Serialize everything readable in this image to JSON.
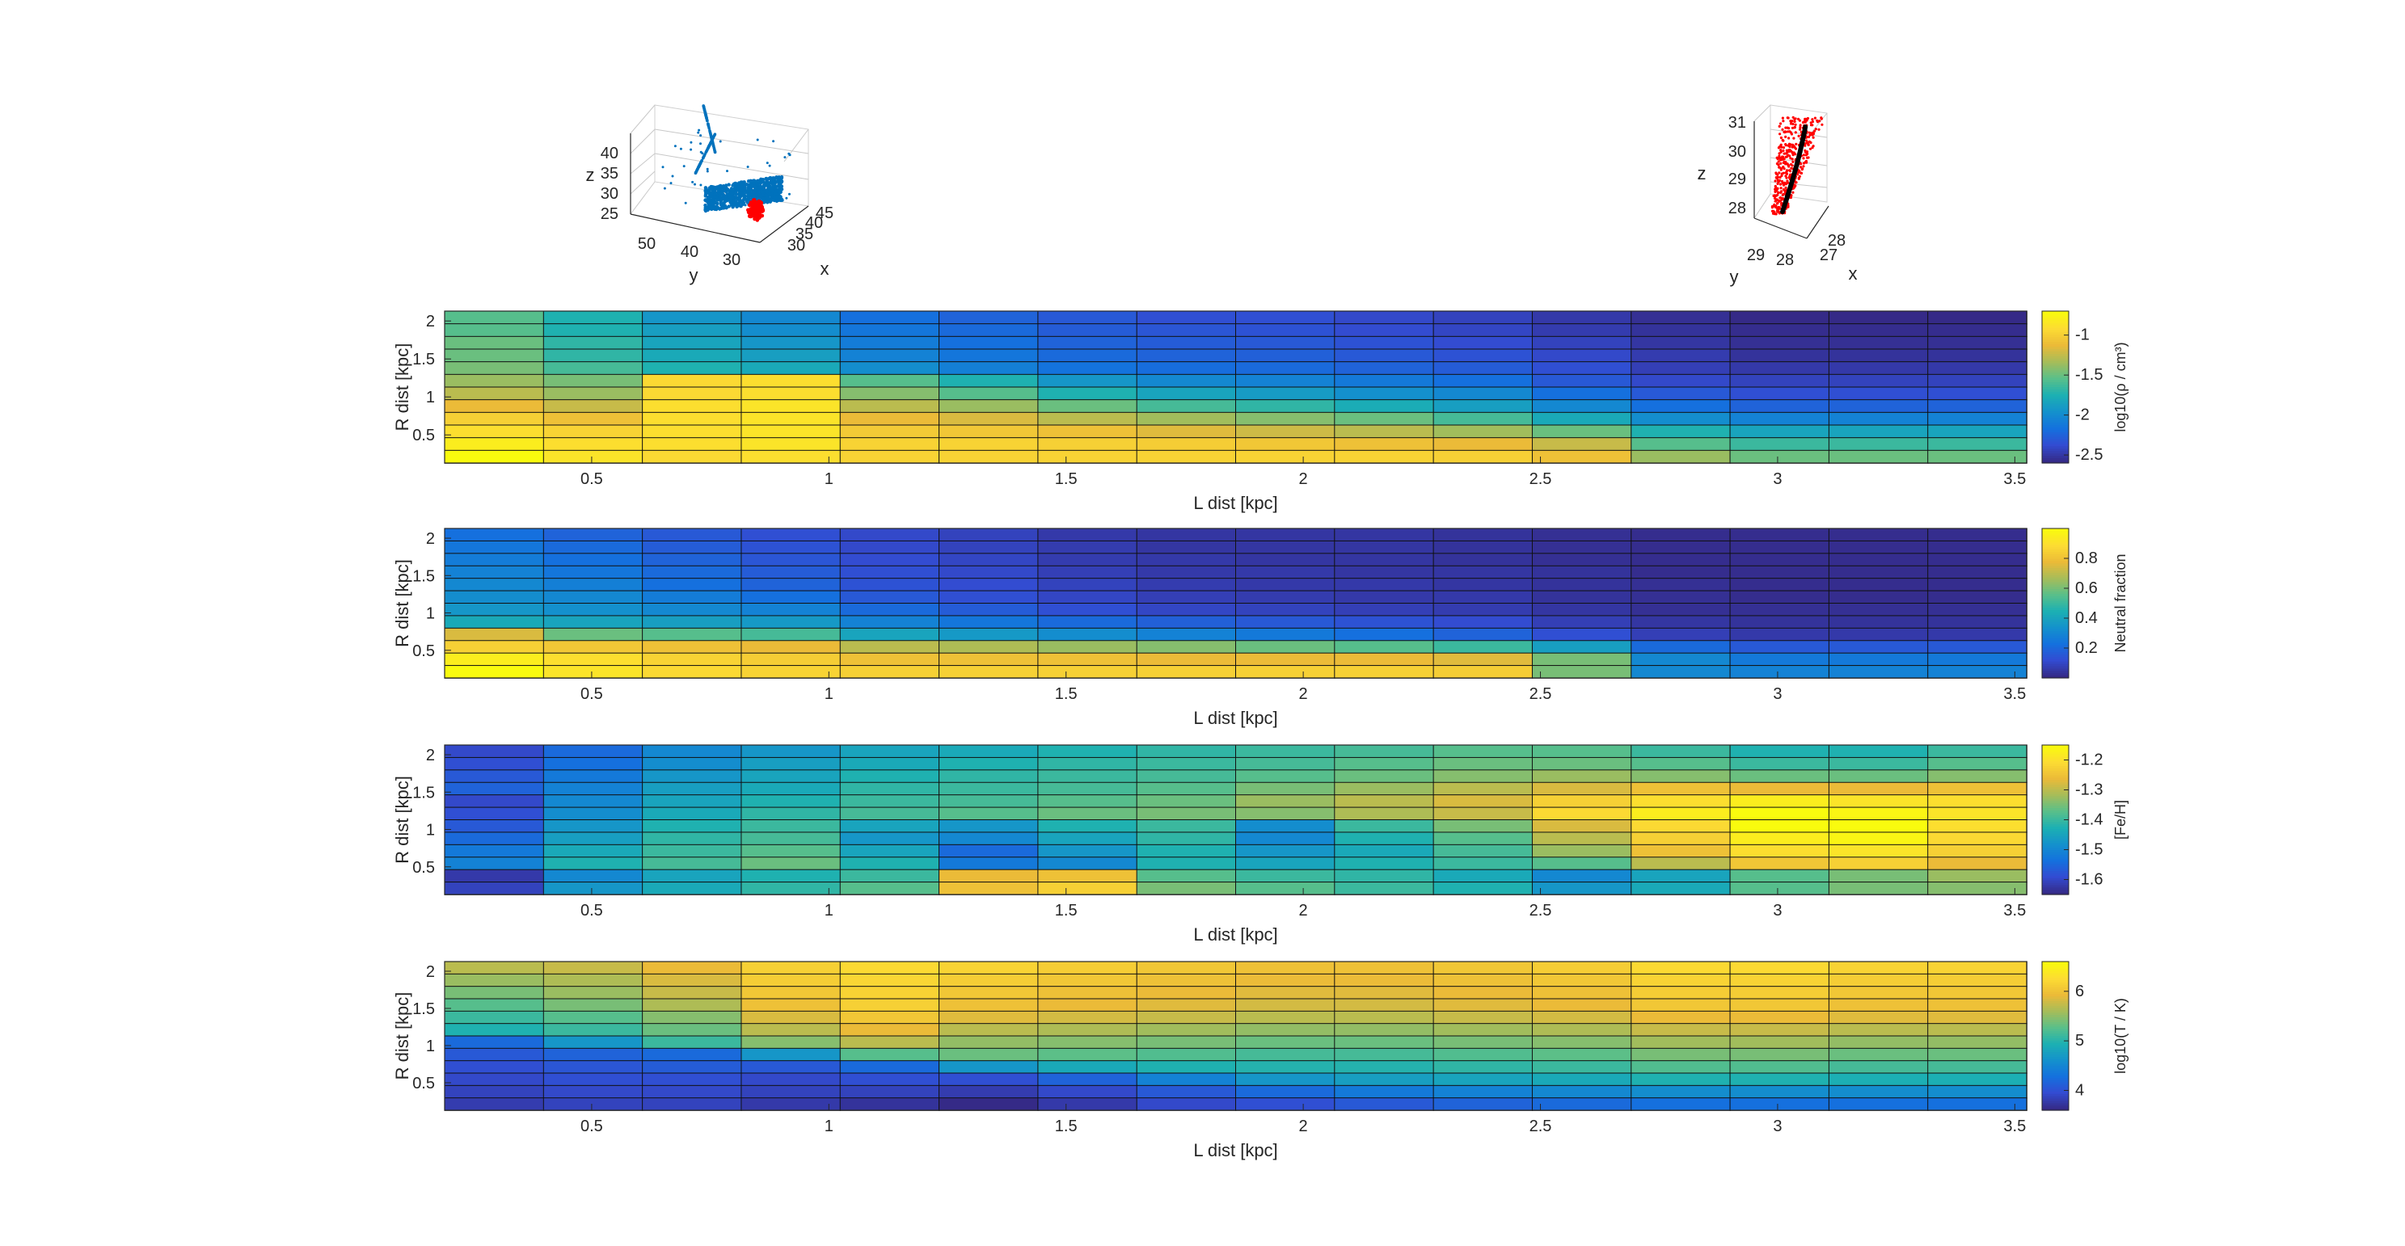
{
  "chart_data": [
    {
      "type": "scatter",
      "title": "",
      "xlabel": "x",
      "ylabel": "y",
      "zlabel": "z",
      "x_ticks": [
        "30",
        "35",
        "40",
        "45"
      ],
      "y_ticks": [
        "50",
        "40",
        "30"
      ],
      "z_ticks": [
        "25",
        "30",
        "35",
        "40"
      ],
      "series": [
        {
          "color": "#0072bd",
          "x": [
            30,
            33,
            36,
            38,
            40,
            42,
            35,
            31
          ],
          "y": [
            42,
            38,
            45,
            52,
            30,
            35,
            28,
            48
          ],
          "z": [
            28,
            30,
            33,
            38,
            26,
            29,
            27,
            41
          ]
        },
        {
          "color": "#ff0000",
          "x": [
            30,
            31
          ],
          "y": [
            29,
            30
          ],
          "z": [
            24,
            25
          ]
        }
      ]
    },
    {
      "type": "scatter",
      "title": "",
      "xlabel": "x",
      "ylabel": "y",
      "zlabel": "z",
      "x_ticks": [
        "27",
        "28"
      ],
      "y_ticks": [
        "29",
        "28"
      ],
      "z_ticks": [
        "28",
        "29",
        "30",
        "31"
      ],
      "series": [
        {
          "color": "#ff0000",
          "x": [
            27.5,
            28.1
          ],
          "y": [
            28.2,
            29
          ],
          "z": [
            27.5,
            31
          ]
        },
        {
          "color": "#000000",
          "x": [
            27.8,
            28
          ],
          "y": [
            28.5,
            28.8
          ],
          "z": [
            27.8,
            31
          ]
        }
      ]
    },
    {
      "type": "heatmap",
      "xlabel": "L dist [kpc]",
      "ylabel": "R dist [kpc]",
      "x_ticks": [
        "0.5",
        "1",
        "1.5",
        "2",
        "2.5",
        "3",
        "3.5"
      ],
      "y_ticks": [
        "0.5",
        "1",
        "1.5",
        "2"
      ],
      "colorbar": {
        "label": "log10(ρ / cm³)",
        "ticks": [
          "-1",
          "-1.5",
          "-2",
          "-2.5"
        ],
        "range": [
          -2.6,
          -0.7
        ]
      },
      "rows": 12,
      "columns": 16,
      "row_order": "top-to-bottom",
      "values": [
        [
          0.55,
          0.45,
          0.35,
          0.3,
          0.22,
          0.18,
          0.15,
          0.12,
          0.12,
          0.1,
          0.08,
          0.05,
          0.02,
          0.0,
          0.0,
          0.0
        ],
        [
          0.55,
          0.45,
          0.38,
          0.32,
          0.24,
          0.2,
          0.16,
          0.14,
          0.13,
          0.11,
          0.09,
          0.06,
          0.03,
          0.01,
          0.01,
          0.01
        ],
        [
          0.58,
          0.48,
          0.4,
          0.35,
          0.26,
          0.22,
          0.18,
          0.16,
          0.15,
          0.13,
          0.11,
          0.08,
          0.04,
          0.02,
          0.02,
          0.02
        ],
        [
          0.58,
          0.48,
          0.42,
          0.38,
          0.28,
          0.24,
          0.2,
          0.18,
          0.17,
          0.15,
          0.13,
          0.1,
          0.06,
          0.03,
          0.03,
          0.03
        ],
        [
          0.6,
          0.52,
          0.45,
          0.42,
          0.32,
          0.27,
          0.23,
          0.21,
          0.2,
          0.18,
          0.16,
          0.12,
          0.07,
          0.05,
          0.05,
          0.05
        ],
        [
          0.65,
          0.6,
          0.88,
          0.9,
          0.55,
          0.45,
          0.35,
          0.3,
          0.28,
          0.25,
          0.22,
          0.15,
          0.1,
          0.08,
          0.08,
          0.08
        ],
        [
          0.7,
          0.65,
          0.88,
          0.9,
          0.62,
          0.55,
          0.45,
          0.4,
          0.37,
          0.33,
          0.3,
          0.22,
          0.15,
          0.12,
          0.12,
          0.12
        ],
        [
          0.78,
          0.72,
          0.9,
          0.92,
          0.7,
          0.65,
          0.58,
          0.52,
          0.48,
          0.43,
          0.38,
          0.3,
          0.22,
          0.18,
          0.18,
          0.18
        ],
        [
          0.85,
          0.8,
          0.9,
          0.92,
          0.78,
          0.75,
          0.7,
          0.66,
          0.62,
          0.58,
          0.52,
          0.42,
          0.32,
          0.28,
          0.28,
          0.28
        ],
        [
          0.9,
          0.86,
          0.9,
          0.92,
          0.83,
          0.82,
          0.8,
          0.76,
          0.73,
          0.7,
          0.66,
          0.58,
          0.45,
          0.4,
          0.4,
          0.4
        ],
        [
          0.95,
          0.9,
          0.9,
          0.92,
          0.86,
          0.86,
          0.85,
          0.84,
          0.82,
          0.8,
          0.78,
          0.72,
          0.55,
          0.5,
          0.5,
          0.5
        ],
        [
          1.0,
          0.92,
          0.88,
          0.9,
          0.86,
          0.86,
          0.86,
          0.86,
          0.86,
          0.86,
          0.85,
          0.8,
          0.65,
          0.58,
          0.58,
          0.58
        ]
      ]
    },
    {
      "type": "heatmap",
      "xlabel": "L dist [kpc]",
      "ylabel": "R dist [kpc]",
      "x_ticks": [
        "0.5",
        "1",
        "1.5",
        "2",
        "2.5",
        "3",
        "3.5"
      ],
      "y_ticks": [
        "0.5",
        "1",
        "1.5",
        "2"
      ],
      "colorbar": {
        "label": "Neutral fraction",
        "ticks": [
          "0.8",
          "0.6",
          "0.4",
          "0.2"
        ],
        "range": [
          0,
          1
        ]
      },
      "rows": 12,
      "columns": 16,
      "row_order": "top-to-bottom",
      "values": [
        [
          0.22,
          0.18,
          0.15,
          0.12,
          0.1,
          0.08,
          0.05,
          0.04,
          0.04,
          0.04,
          0.03,
          0.02,
          0.01,
          0.01,
          0.01,
          0.01
        ],
        [
          0.24,
          0.2,
          0.16,
          0.13,
          0.1,
          0.08,
          0.06,
          0.04,
          0.04,
          0.04,
          0.03,
          0.02,
          0.01,
          0.01,
          0.01,
          0.01
        ],
        [
          0.26,
          0.22,
          0.18,
          0.14,
          0.11,
          0.09,
          0.06,
          0.05,
          0.04,
          0.04,
          0.03,
          0.02,
          0.01,
          0.01,
          0.01,
          0.01
        ],
        [
          0.28,
          0.24,
          0.2,
          0.16,
          0.12,
          0.1,
          0.07,
          0.05,
          0.05,
          0.04,
          0.04,
          0.03,
          0.01,
          0.01,
          0.01,
          0.01
        ],
        [
          0.3,
          0.27,
          0.22,
          0.18,
          0.13,
          0.11,
          0.08,
          0.06,
          0.05,
          0.05,
          0.04,
          0.03,
          0.02,
          0.01,
          0.01,
          0.01
        ],
        [
          0.32,
          0.3,
          0.26,
          0.22,
          0.15,
          0.12,
          0.09,
          0.07,
          0.06,
          0.05,
          0.05,
          0.03,
          0.02,
          0.01,
          0.01,
          0.01
        ],
        [
          0.35,
          0.33,
          0.3,
          0.28,
          0.2,
          0.16,
          0.12,
          0.09,
          0.08,
          0.07,
          0.06,
          0.04,
          0.02,
          0.02,
          0.02,
          0.02
        ],
        [
          0.42,
          0.4,
          0.38,
          0.36,
          0.28,
          0.24,
          0.2,
          0.17,
          0.15,
          0.13,
          0.11,
          0.07,
          0.04,
          0.03,
          0.03,
          0.03
        ],
        [
          0.75,
          0.58,
          0.55,
          0.52,
          0.4,
          0.36,
          0.32,
          0.28,
          0.25,
          0.22,
          0.18,
          0.12,
          0.07,
          0.05,
          0.05,
          0.05
        ],
        [
          0.85,
          0.82,
          0.8,
          0.78,
          0.7,
          0.68,
          0.65,
          0.62,
          0.58,
          0.55,
          0.5,
          0.38,
          0.2,
          0.15,
          0.15,
          0.15
        ],
        [
          0.95,
          0.9,
          0.86,
          0.84,
          0.8,
          0.8,
          0.8,
          0.78,
          0.78,
          0.78,
          0.76,
          0.6,
          0.3,
          0.25,
          0.25,
          0.25
        ],
        [
          1.0,
          0.92,
          0.88,
          0.86,
          0.85,
          0.85,
          0.85,
          0.85,
          0.85,
          0.85,
          0.84,
          0.6,
          0.3,
          0.28,
          0.28,
          0.28
        ]
      ]
    },
    {
      "type": "heatmap",
      "xlabel": "L dist [kpc]",
      "ylabel": "R dist [kpc]",
      "x_ticks": [
        "0.5",
        "1",
        "1.5",
        "2",
        "2.5",
        "3",
        "3.5"
      ],
      "y_ticks": [
        "0.5",
        "1",
        "1.5",
        "2"
      ],
      "colorbar": {
        "label": "[Fe/H]",
        "ticks": [
          "-1.2",
          "-1.3",
          "-1.4",
          "-1.5",
          "-1.6"
        ],
        "range": [
          -1.65,
          -1.15
        ]
      },
      "rows": 12,
      "columns": 16,
      "row_order": "top-to-bottom",
      "values": [
        [
          0.1,
          0.2,
          0.3,
          0.35,
          0.4,
          0.42,
          0.45,
          0.48,
          0.5,
          0.52,
          0.55,
          0.55,
          0.5,
          0.45,
          0.45,
          0.5
        ],
        [
          0.12,
          0.22,
          0.32,
          0.38,
          0.42,
          0.45,
          0.48,
          0.5,
          0.52,
          0.55,
          0.58,
          0.58,
          0.55,
          0.5,
          0.5,
          0.55
        ],
        [
          0.15,
          0.25,
          0.35,
          0.4,
          0.45,
          0.48,
          0.5,
          0.52,
          0.55,
          0.58,
          0.62,
          0.65,
          0.62,
          0.58,
          0.58,
          0.62
        ],
        [
          0.18,
          0.28,
          0.38,
          0.42,
          0.48,
          0.5,
          0.52,
          0.55,
          0.6,
          0.65,
          0.7,
          0.75,
          0.8,
          0.78,
          0.78,
          0.8
        ],
        [
          0.1,
          0.3,
          0.4,
          0.45,
          0.5,
          0.52,
          0.55,
          0.58,
          0.65,
          0.7,
          0.75,
          0.85,
          0.9,
          0.95,
          0.92,
          0.9
        ],
        [
          0.12,
          0.32,
          0.42,
          0.48,
          0.52,
          0.55,
          0.58,
          0.6,
          0.62,
          0.68,
          0.72,
          0.88,
          0.95,
          1.0,
          0.98,
          0.92
        ],
        [
          0.15,
          0.35,
          0.45,
          0.5,
          0.4,
          0.35,
          0.45,
          0.5,
          0.32,
          0.5,
          0.6,
          0.75,
          0.88,
          1.0,
          1.0,
          0.9
        ],
        [
          0.2,
          0.38,
          0.48,
          0.52,
          0.35,
          0.3,
          0.4,
          0.48,
          0.3,
          0.45,
          0.55,
          0.7,
          0.85,
          0.95,
          0.98,
          0.88
        ],
        [
          0.25,
          0.42,
          0.5,
          0.55,
          0.4,
          0.2,
          0.35,
          0.45,
          0.35,
          0.42,
          0.52,
          0.65,
          0.8,
          0.9,
          0.92,
          0.85
        ],
        [
          0.28,
          0.45,
          0.52,
          0.58,
          0.45,
          0.25,
          0.3,
          0.45,
          0.4,
          0.45,
          0.5,
          0.55,
          0.7,
          0.82,
          0.85,
          0.78
        ],
        [
          0.05,
          0.3,
          0.4,
          0.45,
          0.5,
          0.78,
          0.8,
          0.55,
          0.5,
          0.48,
          0.42,
          0.3,
          0.4,
          0.55,
          0.6,
          0.65
        ],
        [
          0.08,
          0.35,
          0.42,
          0.48,
          0.55,
          0.8,
          0.85,
          0.6,
          0.55,
          0.5,
          0.45,
          0.35,
          0.42,
          0.55,
          0.6,
          0.62
        ]
      ]
    },
    {
      "type": "heatmap",
      "xlabel": "L dist [kpc]",
      "ylabel": "R dist [kpc]",
      "x_ticks": [
        "0.5",
        "1",
        "1.5",
        "2",
        "2.5",
        "3",
        "3.5"
      ],
      "y_ticks": [
        "0.5",
        "1",
        "1.5",
        "2"
      ],
      "colorbar": {
        "label": "log10(T / K)",
        "ticks": [
          "6",
          "5",
          "4"
        ],
        "range": [
          3.6,
          6.6
        ]
      },
      "rows": 12,
      "columns": 16,
      "row_order": "top-to-bottom",
      "values": [
        [
          0.7,
          0.72,
          0.78,
          0.85,
          0.88,
          0.86,
          0.84,
          0.82,
          0.8,
          0.8,
          0.82,
          0.84,
          0.88,
          0.88,
          0.86,
          0.86
        ],
        [
          0.65,
          0.68,
          0.75,
          0.84,
          0.87,
          0.84,
          0.82,
          0.8,
          0.78,
          0.78,
          0.8,
          0.82,
          0.86,
          0.86,
          0.84,
          0.84
        ],
        [
          0.6,
          0.65,
          0.72,
          0.82,
          0.86,
          0.82,
          0.8,
          0.78,
          0.76,
          0.76,
          0.78,
          0.8,
          0.84,
          0.84,
          0.82,
          0.82
        ],
        [
          0.55,
          0.6,
          0.68,
          0.8,
          0.85,
          0.8,
          0.78,
          0.76,
          0.74,
          0.74,
          0.76,
          0.78,
          0.82,
          0.82,
          0.8,
          0.8
        ],
        [
          0.5,
          0.55,
          0.62,
          0.75,
          0.82,
          0.76,
          0.74,
          0.72,
          0.7,
          0.7,
          0.72,
          0.74,
          0.78,
          0.78,
          0.76,
          0.76
        ],
        [
          0.45,
          0.5,
          0.58,
          0.7,
          0.78,
          0.7,
          0.68,
          0.66,
          0.64,
          0.64,
          0.66,
          0.68,
          0.72,
          0.72,
          0.7,
          0.7
        ],
        [
          0.2,
          0.35,
          0.5,
          0.62,
          0.7,
          0.64,
          0.62,
          0.6,
          0.58,
          0.58,
          0.6,
          0.62,
          0.66,
          0.66,
          0.64,
          0.64
        ],
        [
          0.15,
          0.18,
          0.2,
          0.35,
          0.55,
          0.58,
          0.56,
          0.54,
          0.52,
          0.52,
          0.54,
          0.56,
          0.6,
          0.6,
          0.58,
          0.58
        ],
        [
          0.12,
          0.14,
          0.16,
          0.15,
          0.2,
          0.35,
          0.42,
          0.45,
          0.46,
          0.46,
          0.48,
          0.5,
          0.54,
          0.54,
          0.52,
          0.52
        ],
        [
          0.1,
          0.12,
          0.12,
          0.1,
          0.12,
          0.12,
          0.18,
          0.28,
          0.35,
          0.38,
          0.4,
          0.42,
          0.45,
          0.45,
          0.44,
          0.44
        ],
        [
          0.08,
          0.1,
          0.1,
          0.08,
          0.08,
          0.06,
          0.1,
          0.15,
          0.2,
          0.25,
          0.28,
          0.3,
          0.32,
          0.32,
          0.32,
          0.32
        ],
        [
          0.06,
          0.08,
          0.08,
          0.05,
          0.03,
          0.0,
          0.05,
          0.1,
          0.12,
          0.15,
          0.18,
          0.2,
          0.22,
          0.22,
          0.22,
          0.22
        ]
      ]
    }
  ]
}
